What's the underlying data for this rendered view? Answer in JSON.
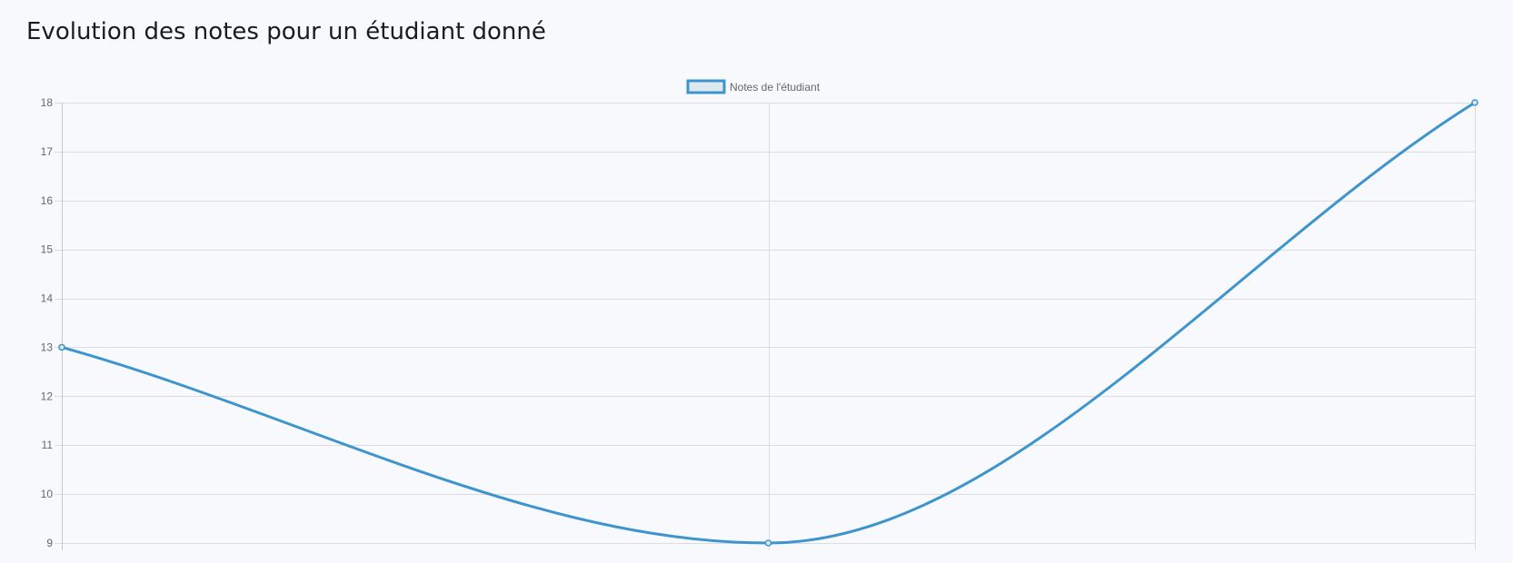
{
  "page": {
    "title": "Evolution des notes pour un étudiant donné"
  },
  "chart_data": {
    "type": "line",
    "x": [
      0,
      1,
      2
    ],
    "series": [
      {
        "name": "Notes de l'étudiant",
        "values": [
          13,
          9,
          18
        ],
        "color": "#3e95cd",
        "fill": "#dde8f0"
      }
    ],
    "ylim": [
      9,
      18
    ],
    "yticks": [
      9,
      10,
      11,
      12,
      13,
      14,
      15,
      16,
      17,
      18
    ],
    "xlabel": "",
    "ylabel": "",
    "grid": true,
    "legend": "top-center",
    "curve": "smooth"
  }
}
